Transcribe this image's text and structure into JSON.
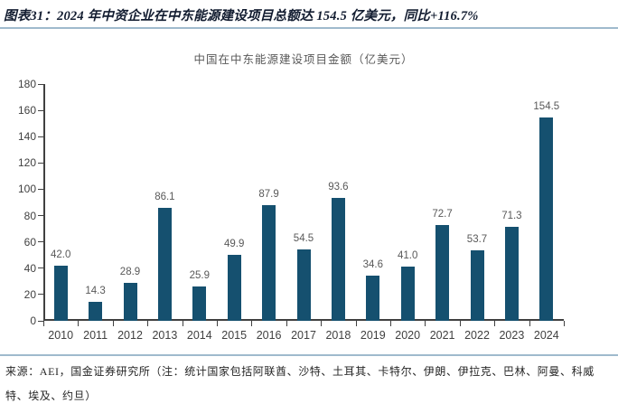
{
  "figure": {
    "caption": "图表31：2024 年中资企业在中东能源建设项目总额达 154.5 亿美元，同比+116.7%",
    "source_note": "来源：AEI，国金证券研究所（注：统计国家包括阿联酋、沙特、土耳其、卡特尔、伊朗、伊拉克、巴林、阿曼、科威特、埃及、约旦）"
  },
  "chart_data": {
    "type": "bar",
    "title": "中国在中东能源建设项目金额（亿美元）",
    "categories": [
      "2010",
      "2011",
      "2012",
      "2013",
      "2014",
      "2015",
      "2016",
      "2017",
      "2018",
      "2019",
      "2020",
      "2021",
      "2022",
      "2023",
      "2024"
    ],
    "values": [
      42.0,
      14.3,
      28.9,
      86.1,
      25.9,
      49.9,
      87.9,
      54.5,
      93.6,
      34.6,
      41.0,
      72.7,
      53.7,
      71.3,
      154.5
    ],
    "value_label_decimals": 1,
    "xlabel": "",
    "ylabel": "",
    "ylim": [
      0,
      180
    ],
    "ytick_interval": 20,
    "grid": false,
    "legend": "none",
    "bar_color": "#15506F",
    "axis_color": "#404040",
    "label_color": "#595959"
  },
  "colors": {
    "separator": "#9FBACD",
    "caption_text": "#121C30",
    "background": "#FFFFFF"
  }
}
